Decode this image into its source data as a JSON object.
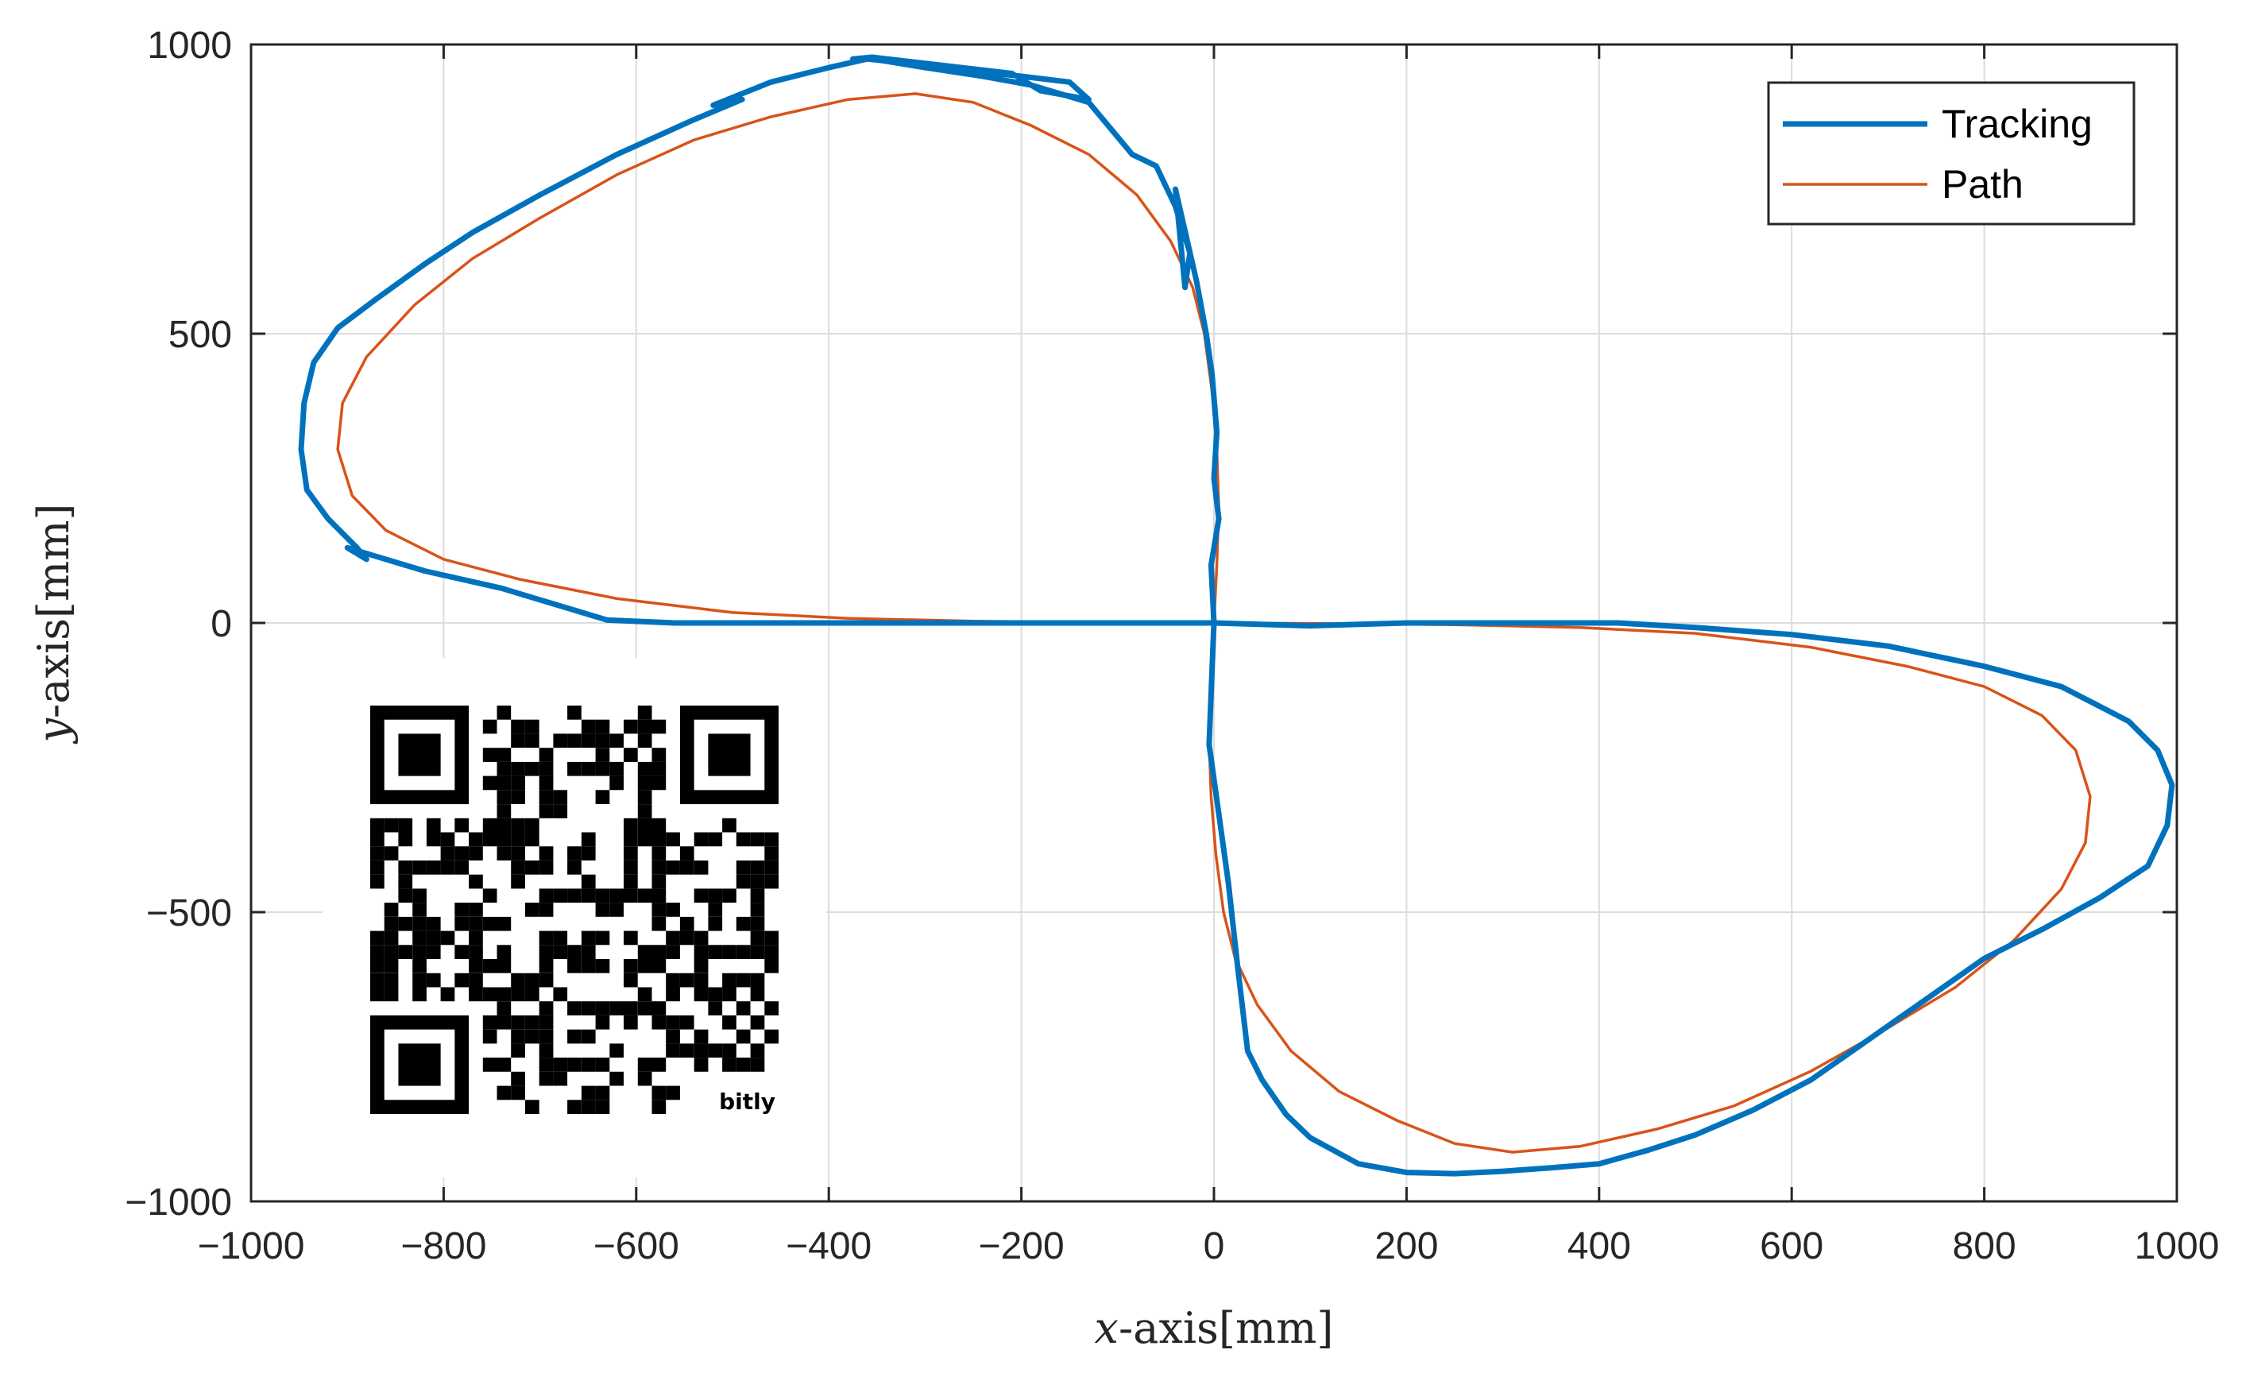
{
  "colors": {
    "tracking": "#0072bd",
    "path": "#d95319",
    "axis": "#262626",
    "grid": "#dcdcdc"
  },
  "chart_data": {
    "type": "line",
    "title": "",
    "xlabel_var": "x",
    "xlabel_rest": "-axis[mm]",
    "ylabel_var": "y",
    "ylabel_rest": "-axis[mm]",
    "xlim": [
      -1000,
      1000
    ],
    "ylim": [
      -1000,
      1000
    ],
    "xticks": [
      -1000,
      -800,
      -600,
      -400,
      -200,
      0,
      200,
      400,
      600,
      800,
      1000
    ],
    "yticks": [
      -1000,
      -500,
      0,
      500,
      1000
    ],
    "grid": true,
    "legend_position": "top-right",
    "series": [
      {
        "name": "Tracking",
        "color": "#0072bd",
        "line": "thick",
        "x": [
          0,
          -5,
          -8,
          -5,
          -3,
          2,
          -3,
          -5,
          -8,
          -12,
          -15,
          -18,
          -28,
          -38,
          -20,
          -35,
          -45,
          -50,
          -70,
          -88,
          -90,
          -110,
          -130,
          -150,
          -175,
          -200,
          -270,
          -350,
          -360,
          -380,
          -400,
          -450,
          -500,
          -540,
          -560,
          -620,
          -680,
          -740,
          -790,
          -830,
          -860,
          -890,
          -910,
          -930,
          -942,
          -945,
          -945,
          -935,
          -920,
          -900,
          -880,
          -820,
          -750,
          -690,
          -630,
          -560,
          -450,
          -300,
          -150,
          0
        ],
        "y": [
          0,
          30,
          80,
          150,
          200,
          250,
          310,
          380,
          430,
          500,
          560,
          600,
          730,
          610,
          580,
          560,
          640,
          710,
          790,
          820,
          810,
          860,
          910,
          930,
          945,
          960,
          970,
          975,
          978,
          965,
          950,
          920,
          890,
          860,
          840,
          800,
          760,
          710,
          660,
          620,
          580,
          540,
          500,
          450,
          380,
          300,
          220,
          180,
          140,
          120,
          110,
          70,
          40,
          15,
          2,
          0,
          0,
          0,
          0,
          0
        ],
        "x2": [
          0,
          -5,
          0,
          10,
          20,
          30,
          35,
          50,
          70,
          90,
          110,
          150,
          200,
          250,
          300,
          350,
          400,
          450,
          500,
          550,
          600,
          650,
          700,
          750,
          800,
          850,
          900,
          950,
          980,
          995,
          995,
          980,
          950,
          920,
          880,
          840,
          800,
          750,
          700,
          600,
          500,
          400,
          300,
          200,
          100,
          0
        ],
        "y2": [
          0,
          -210,
          -330,
          -450,
          -600,
          -720,
          -740,
          -790,
          -850,
          -890,
          -910,
          -935,
          -950,
          -952,
          -948,
          -940,
          -920,
          -885,
          -840,
          -790,
          -720,
          -650,
          -570,
          -500,
          -440,
          -370,
          -290,
          -220,
          -180,
          -210,
          -280,
          -340,
          -410,
          -460,
          -510,
          -550,
          -590,
          -600,
          -610,
          -630,
          -640,
          -640,
          -660,
          -670,
          -680,
          -680
        ]
      },
      {
        "name": "Path",
        "color": "#d95319",
        "line": "thin"
      }
    ]
  }
}
